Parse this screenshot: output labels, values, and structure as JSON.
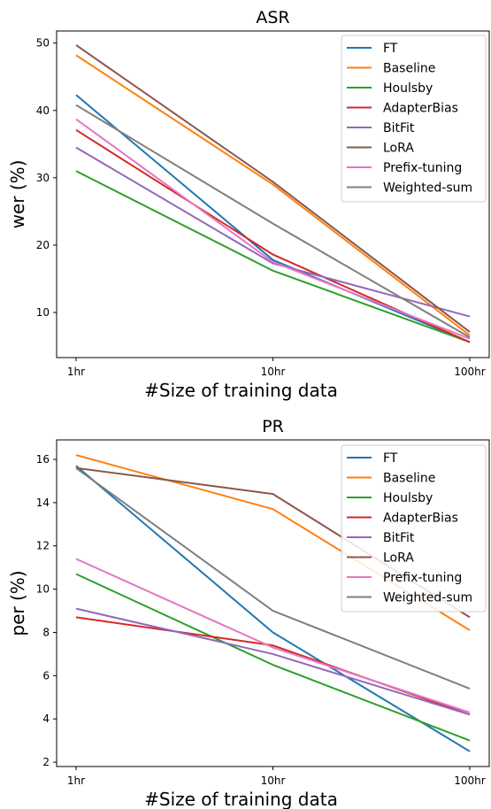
{
  "chart_data": [
    {
      "type": "line",
      "title": "ASR",
      "xlabel": "#Size of training data",
      "ylabel": "wer (%)",
      "categories": [
        "1hr",
        "10hr",
        "100hr"
      ],
      "yticks": [
        10,
        20,
        30,
        40,
        50
      ],
      "ylim": [
        3.3,
        51.8
      ],
      "legend_position": "top-right",
      "grid": false,
      "series": [
        {
          "name": "FT",
          "color": "#1f77b4",
          "values": [
            42.3,
            17.8,
            5.6
          ]
        },
        {
          "name": "Baseline",
          "color": "#ff7f0e",
          "values": [
            48.2,
            29.0,
            6.6
          ]
        },
        {
          "name": "Houlsby",
          "color": "#2ca02c",
          "values": [
            31.0,
            16.2,
            5.6
          ]
        },
        {
          "name": "AdapterBias",
          "color": "#d62728",
          "values": [
            37.1,
            18.6,
            5.6
          ]
        },
        {
          "name": "BitFit",
          "color": "#9467bd",
          "values": [
            34.5,
            17.3,
            9.4
          ]
        },
        {
          "name": "LoRA",
          "color": "#8c564b",
          "values": [
            49.7,
            29.4,
            7.1
          ]
        },
        {
          "name": "Prefix-tuning",
          "color": "#e377c2",
          "values": [
            38.7,
            17.5,
            6.1
          ]
        },
        {
          "name": "Weighted-sum",
          "color": "#7f7f7f",
          "values": [
            40.8,
            23.2,
            6.3
          ]
        }
      ]
    },
    {
      "type": "line",
      "title": "PR",
      "xlabel": "#Size of training data",
      "ylabel": "per (%)",
      "categories": [
        "1hr",
        "10hr",
        "100hr"
      ],
      "yticks": [
        2,
        4,
        6,
        8,
        10,
        12,
        14,
        16
      ],
      "ylim": [
        1.8,
        16.9
      ],
      "legend_position": "top-right",
      "grid": false,
      "series": [
        {
          "name": "FT",
          "color": "#1f77b4",
          "values": [
            15.7,
            8.0,
            2.5
          ]
        },
        {
          "name": "Baseline",
          "color": "#ff7f0e",
          "values": [
            16.2,
            13.7,
            8.1
          ]
        },
        {
          "name": "Houlsby",
          "color": "#2ca02c",
          "values": [
            10.7,
            6.5,
            3.0
          ]
        },
        {
          "name": "AdapterBias",
          "color": "#d62728",
          "values": [
            8.7,
            7.4,
            4.2
          ]
        },
        {
          "name": "BitFit",
          "color": "#9467bd",
          "values": [
            9.1,
            7.0,
            4.2
          ]
        },
        {
          "name": "LoRA",
          "color": "#8c564b",
          "values": [
            15.6,
            14.4,
            8.7
          ]
        },
        {
          "name": "Prefix-tuning",
          "color": "#e377c2",
          "values": [
            11.4,
            7.3,
            4.3
          ]
        },
        {
          "name": "Weighted-sum",
          "color": "#7f7f7f",
          "values": [
            15.6,
            9.0,
            5.4
          ]
        }
      ]
    }
  ]
}
